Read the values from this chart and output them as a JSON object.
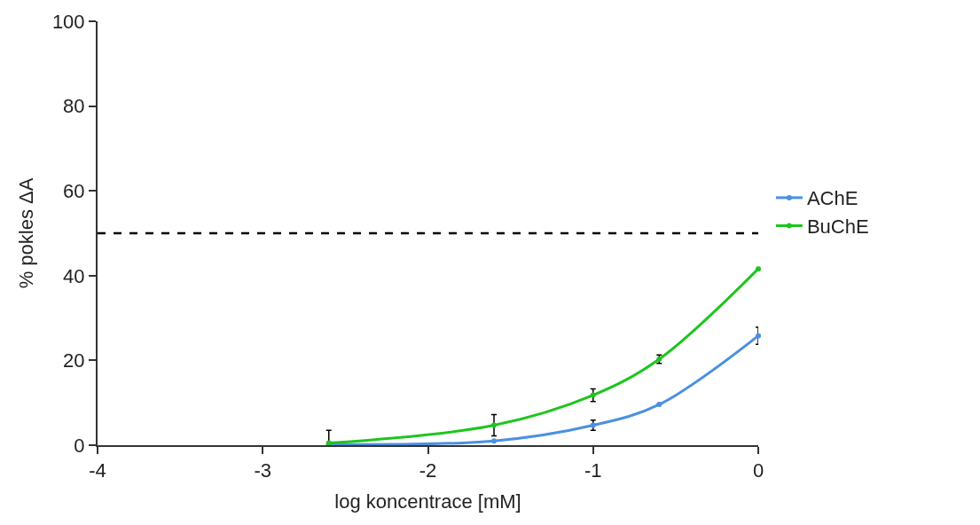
{
  "chart_data": {
    "type": "line",
    "xlabel": "log koncentrace [mM]",
    "ylabel": "% pokles ΔA",
    "x": [
      -2.6,
      -1.6,
      -1,
      -0.6,
      0
    ],
    "series": [
      {
        "name": "AChE",
        "color": "#4a90e2",
        "values": [
          0.2,
          1,
          4.7,
          9.6,
          25.8
        ],
        "errors": [
          null,
          null,
          1.2,
          null,
          2
        ]
      },
      {
        "name": "BuChE",
        "color": "#1ec51e",
        "values": [
          0.5,
          4.7,
          11.8,
          20.3,
          41.6
        ],
        "errors": [
          3,
          2.5,
          1.5,
          1,
          null
        ]
      }
    ],
    "xlim": [
      -4,
      0
    ],
    "xticks": [
      -4,
      -3,
      -2,
      -1,
      0
    ],
    "ylim": [
      0,
      100
    ],
    "yticks": [
      0,
      20,
      40,
      60,
      80,
      100
    ],
    "ref_lines": [
      {
        "axis": "y",
        "value": 50,
        "label": null,
        "color": "#000000",
        "line_style": "dashed"
      }
    ],
    "marker": "circle",
    "line_style": "solid",
    "legend": "right"
  }
}
